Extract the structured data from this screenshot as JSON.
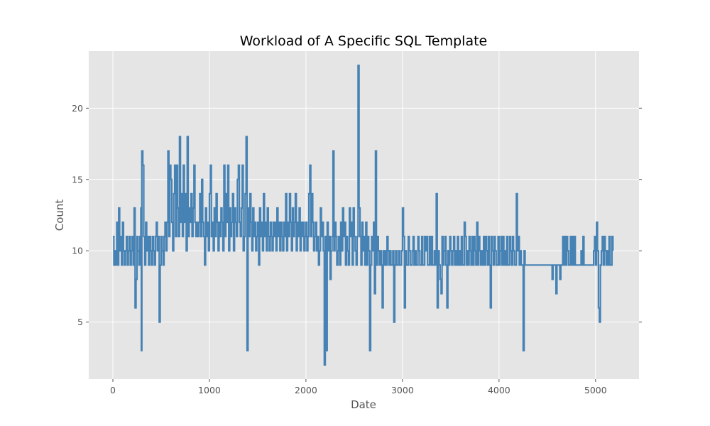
{
  "chart_data": {
    "type": "line",
    "title": "Workload of A Specific SQL Template",
    "xlabel": "Date",
    "ylabel": "Count",
    "xlim": [
      -250,
      5450
    ],
    "ylim": [
      1,
      24
    ],
    "xticks": [
      0,
      1000,
      2000,
      3000,
      4000,
      5000
    ],
    "yticks": [
      5,
      10,
      15,
      20
    ],
    "grid": true,
    "background": "#e5e5e5",
    "series": [
      {
        "color": "#4682b4",
        "x": [
          0,
          10,
          20,
          30,
          40,
          50,
          60,
          70,
          80,
          90,
          100,
          110,
          120,
          130,
          140,
          150,
          160,
          170,
          180,
          190,
          200,
          210,
          220,
          230,
          240,
          250,
          260,
          270,
          280,
          290,
          295,
          300,
          310,
          320,
          330,
          340,
          350,
          360,
          370,
          380,
          390,
          400,
          410,
          420,
          430,
          440,
          450,
          460,
          470,
          480,
          490,
          500,
          510,
          520,
          530,
          540,
          550,
          560,
          570,
          580,
          590,
          600,
          610,
          620,
          630,
          640,
          650,
          660,
          670,
          680,
          690,
          700,
          710,
          720,
          730,
          740,
          750,
          760,
          770,
          780,
          790,
          800,
          810,
          820,
          830,
          840,
          850,
          860,
          870,
          880,
          890,
          900,
          910,
          920,
          930,
          940,
          950,
          960,
          970,
          980,
          990,
          1000,
          1010,
          1020,
          1030,
          1040,
          1050,
          1060,
          1070,
          1080,
          1090,
          1100,
          1110,
          1120,
          1130,
          1140,
          1150,
          1160,
          1170,
          1180,
          1190,
          1200,
          1210,
          1220,
          1230,
          1240,
          1250,
          1260,
          1270,
          1280,
          1290,
          1300,
          1310,
          1320,
          1330,
          1340,
          1350,
          1360,
          1370,
          1380,
          1390,
          1400,
          1410,
          1420,
          1430,
          1440,
          1450,
          1460,
          1470,
          1480,
          1490,
          1500,
          1510,
          1520,
          1530,
          1540,
          1550,
          1560,
          1570,
          1580,
          1590,
          1600,
          1610,
          1620,
          1630,
          1640,
          1650,
          1660,
          1670,
          1680,
          1690,
          1700,
          1710,
          1720,
          1730,
          1740,
          1750,
          1760,
          1770,
          1780,
          1790,
          1800,
          1810,
          1820,
          1830,
          1840,
          1850,
          1860,
          1870,
          1880,
          1890,
          1900,
          1910,
          1920,
          1930,
          1940,
          1950,
          1960,
          1970,
          1980,
          1990,
          2000,
          2010,
          2020,
          2030,
          2040,
          2050,
          2060,
          2070,
          2080,
          2090,
          2100,
          2110,
          2120,
          2130,
          2140,
          2150,
          2160,
          2170,
          2180,
          2190,
          2200,
          2210,
          2220,
          2230,
          2240,
          2250,
          2260,
          2270,
          2280,
          2290,
          2300,
          2310,
          2320,
          2330,
          2340,
          2350,
          2360,
          2370,
          2380,
          2390,
          2400,
          2410,
          2420,
          2430,
          2440,
          2450,
          2460,
          2470,
          2480,
          2490,
          2500,
          2510,
          2520,
          2530,
          2540,
          2550,
          2560,
          2570,
          2580,
          2590,
          2600,
          2610,
          2620,
          2630,
          2640,
          2650,
          2660,
          2670,
          2680,
          2690,
          2700,
          2710,
          2720,
          2730,
          2740,
          2750,
          2760,
          2770,
          2780,
          2790,
          2800,
          2810,
          2820,
          2830,
          2840,
          2850,
          2860,
          2870,
          2880,
          2890,
          2900,
          2910,
          2920,
          2930,
          2940,
          2950,
          2960,
          2970,
          2980,
          2990,
          3000,
          3010,
          3020,
          3030,
          3040,
          3050,
          3060,
          3070,
          3080,
          3090,
          3100,
          3110,
          3120,
          3130,
          3140,
          3150,
          3160,
          3170,
          3180,
          3190,
          3200,
          3210,
          3220,
          3230,
          3240,
          3250,
          3260,
          3270,
          3280,
          3290,
          3300,
          3310,
          3320,
          3330,
          3340,
          3350,
          3360,
          3370,
          3380,
          3390,
          3400,
          3410,
          3420,
          3430,
          3440,
          3450,
          3460,
          3470,
          3480,
          3490,
          3500,
          3510,
          3520,
          3530,
          3540,
          3550,
          3560,
          3570,
          3580,
          3590,
          3600,
          3610,
          3620,
          3630,
          3640,
          3650,
          3660,
          3670,
          3680,
          3690,
          3700,
          3710,
          3720,
          3730,
          3740,
          3750,
          3760,
          3770,
          3780,
          3790,
          3800,
          3810,
          3820,
          3830,
          3840,
          3850,
          3860,
          3870,
          3880,
          3890,
          3900,
          3910,
          3920,
          3930,
          3940,
          3950,
          3960,
          3970,
          3980,
          3990,
          4000,
          4010,
          4020,
          4030,
          4040,
          4050,
          4060,
          4070,
          4080,
          4090,
          4100,
          4110,
          4120,
          4130,
          4140,
          4150,
          4160,
          4170,
          4180,
          4190,
          4200,
          4210,
          4220,
          4230,
          4240,
          4250,
          4260,
          4270,
          4280,
          4290,
          4300,
          4310,
          4320,
          4330,
          4340,
          4350,
          4360,
          4370,
          4380,
          4390,
          4400,
          4410,
          4420,
          4430,
          4440,
          4450,
          4460,
          4470,
          4480,
          4490,
          4500,
          4510,
          4520,
          4530,
          4540,
          4550,
          4560,
          4570,
          4580,
          4590,
          4600,
          4610,
          4620,
          4630,
          4640,
          4650,
          4660,
          4670,
          4680,
          4690,
          4700,
          4710,
          4720,
          4730,
          4740,
          4750,
          4760,
          4770,
          4780,
          4790,
          4800,
          4810,
          4820,
          4830,
          4840,
          4850,
          4860,
          4870,
          4880,
          4890,
          4900,
          4910,
          4920,
          4930,
          4940,
          4950,
          4960,
          4970,
          4980,
          4990,
          5000,
          5010,
          5020,
          5030,
          5040,
          5050,
          5060,
          5070,
          5080,
          5090,
          5100,
          5110,
          5120,
          5130,
          5140,
          5150,
          5160,
          5170,
          5180
        ],
        "y": [
          11,
          9,
          10,
          9,
          12,
          9,
          13,
          10,
          11,
          9,
          12,
          10,
          9,
          10,
          11,
          9,
          10,
          11,
          9,
          10,
          11,
          9,
          13,
          6,
          8,
          11,
          10,
          9,
          11,
          13,
          3,
          17,
          16,
          11,
          9,
          12,
          10,
          11,
          9,
          11,
          10,
          9,
          11,
          10,
          9,
          11,
          12,
          10,
          11,
          5,
          9,
          11,
          10,
          9,
          11,
          12,
          10,
          12,
          17,
          11,
          16,
          15,
          12,
          10,
          14,
          16,
          11,
          16,
          13,
          11,
          18,
          12,
          14,
          11,
          16,
          12,
          14,
          10,
          18,
          11,
          13,
          12,
          14,
          11,
          13,
          16,
          12,
          11,
          12,
          11,
          12,
          14,
          11,
          15,
          12,
          11,
          9,
          13,
          11,
          12,
          10,
          14,
          16,
          11,
          12,
          10,
          13,
          11,
          14,
          12,
          10,
          12,
          11,
          13,
          12,
          10,
          16,
          11,
          14,
          12,
          16,
          10,
          13,
          11,
          12,
          14,
          10,
          13,
          12,
          11,
          15,
          16,
          12,
          11,
          13,
          16,
          10,
          11,
          14,
          18,
          3,
          13,
          11,
          14,
          12,
          10,
          13,
          11,
          12,
          10,
          11,
          12,
          9,
          13,
          11,
          12,
          10,
          14,
          11,
          12,
          10,
          13,
          11,
          10,
          12,
          11,
          10,
          12,
          11,
          12,
          10,
          13,
          11,
          12,
          10,
          12,
          11,
          10,
          12,
          11,
          14,
          10,
          12,
          11,
          14,
          12,
          10,
          13,
          11,
          12,
          14,
          10,
          12,
          11,
          13,
          10,
          12,
          11,
          12,
          10,
          11,
          12,
          10,
          11,
          14,
          16,
          11,
          14,
          12,
          10,
          11,
          12,
          10,
          11,
          9,
          10,
          13,
          11,
          12,
          10,
          2,
          11,
          3,
          12,
          10,
          11,
          8,
          10,
          11,
          17,
          10,
          12,
          11,
          9,
          10,
          11,
          9,
          12,
          10,
          13,
          11,
          12,
          9,
          11,
          10,
          9,
          13,
          11,
          12,
          9,
          13,
          11,
          10,
          9,
          11,
          23,
          13,
          11,
          9,
          12,
          10,
          11,
          9,
          12,
          9,
          11,
          10,
          3,
          9,
          11,
          10,
          12,
          7,
          17,
          9,
          11,
          10,
          9,
          10,
          9,
          6,
          10,
          9,
          10,
          9,
          11,
          10,
          9,
          10,
          9,
          9,
          10,
          5,
          9,
          10,
          9,
          9,
          10,
          9,
          9,
          10,
          13,
          11,
          6,
          10,
          9,
          9,
          11,
          10,
          9,
          9,
          10,
          11,
          9,
          10,
          9,
          9,
          11,
          10,
          9,
          9,
          11,
          9,
          9,
          11,
          10,
          11,
          9,
          9,
          11,
          9,
          11,
          9,
          9,
          10,
          9,
          14,
          6,
          10,
          9,
          8,
          7,
          11,
          9,
          10,
          11,
          9,
          6,
          10,
          9,
          11,
          10,
          9,
          10,
          11,
          9,
          10,
          9,
          11,
          9,
          10,
          9,
          11,
          9,
          9,
          12,
          11,
          9,
          10,
          9,
          11,
          10,
          9,
          11,
          9,
          11,
          10,
          9,
          12,
          9,
          11,
          10,
          9,
          10,
          9,
          11,
          9,
          11,
          10,
          9,
          11,
          9,
          6,
          11,
          10,
          9,
          11,
          10,
          9,
          9,
          11,
          9,
          10,
          11,
          9,
          11,
          9,
          10,
          9,
          11,
          9,
          9,
          11,
          10,
          9,
          11,
          10,
          9,
          9,
          14,
          10,
          11,
          9,
          10,
          9,
          9,
          3,
          10,
          9,
          9,
          9,
          9,
          9,
          9,
          9,
          9,
          9,
          9,
          9,
          9,
          9,
          9,
          9,
          9,
          9,
          9,
          9,
          9,
          9,
          9,
          9,
          9,
          9,
          9,
          9,
          9,
          8,
          9,
          9,
          9,
          7,
          9,
          9,
          9,
          8,
          9,
          9,
          11,
          9,
          11,
          9,
          11,
          10,
          9,
          9,
          11,
          9,
          11,
          9,
          11,
          9,
          9,
          9,
          9,
          9,
          9,
          10,
          9,
          11,
          9,
          9,
          9,
          9,
          9,
          9,
          9,
          9,
          9,
          9,
          10,
          11,
          9,
          12,
          10,
          6,
          5,
          9,
          10,
          11,
          9,
          11,
          10,
          9,
          10,
          9,
          11,
          9,
          9,
          11,
          10
        ]
      }
    ]
  }
}
